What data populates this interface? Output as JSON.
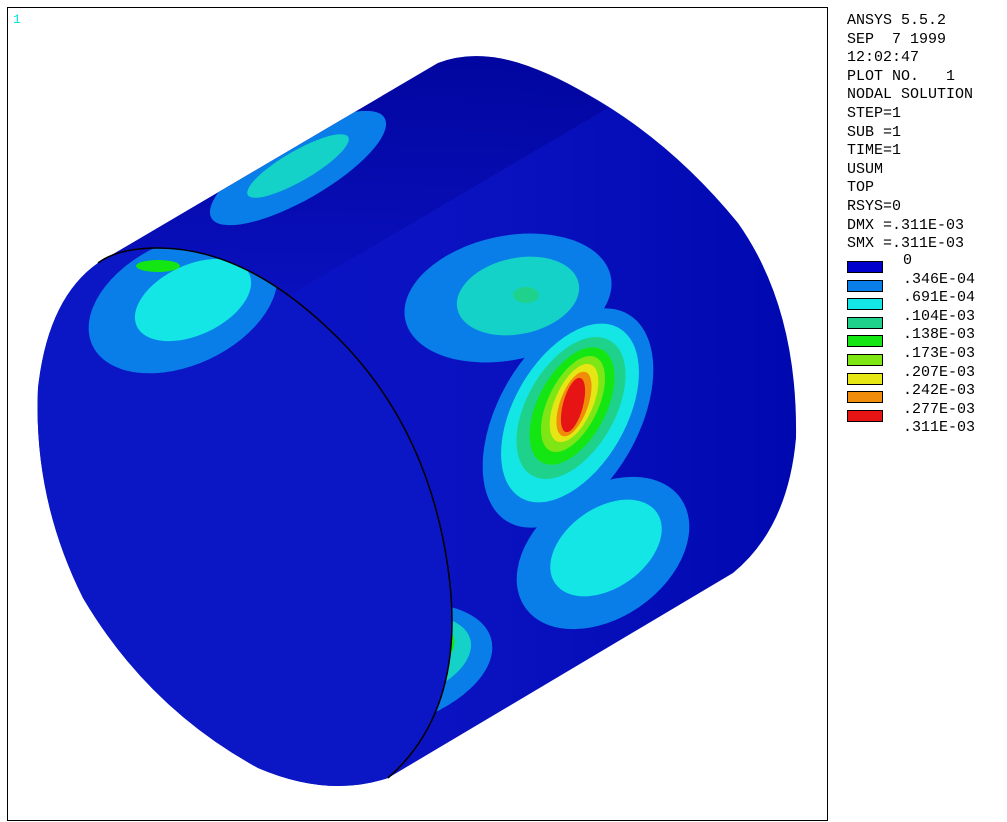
{
  "window": {
    "number": "1"
  },
  "info_lines": [
    "ANSYS 5.5.2",
    "SEP  7 1999",
    "12:02:47",
    "PLOT NO.   1",
    "NODAL SOLUTION",
    "STEP=1",
    "SUB =1",
    "TIME=1",
    "USUM",
    "TOP",
    "RSYS=0",
    "DMX =.311E-03",
    "SMX =.311E-03"
  ],
  "legend": {
    "levels": [
      "0",
      ".346E-04",
      ".691E-04",
      ".104E-03",
      ".138E-03",
      ".173E-03",
      ".207E-03",
      ".242E-03",
      ".277E-03",
      ".311E-03"
    ],
    "colors": [
      "#0000cd",
      "#0a7ee8",
      "#14e6e6",
      "#1fd28c",
      "#14e614",
      "#7de614",
      "#e6e614",
      "#f08c0a",
      "#e61414"
    ]
  },
  "plot": {
    "quantity": "USUM",
    "max_displacement": 0.000311,
    "colors": {
      "shell": "#0a10bd",
      "shell_dark": "#0006a8",
      "inner": "#0b16c2",
      "band1": "#0a7ee8",
      "band2": "#14e6e6",
      "band3": "#1fd28c",
      "band4": "#14e614",
      "band5": "#7de614",
      "band6": "#e6e614",
      "band7": "#f08c0a",
      "band8": "#e61414"
    }
  }
}
